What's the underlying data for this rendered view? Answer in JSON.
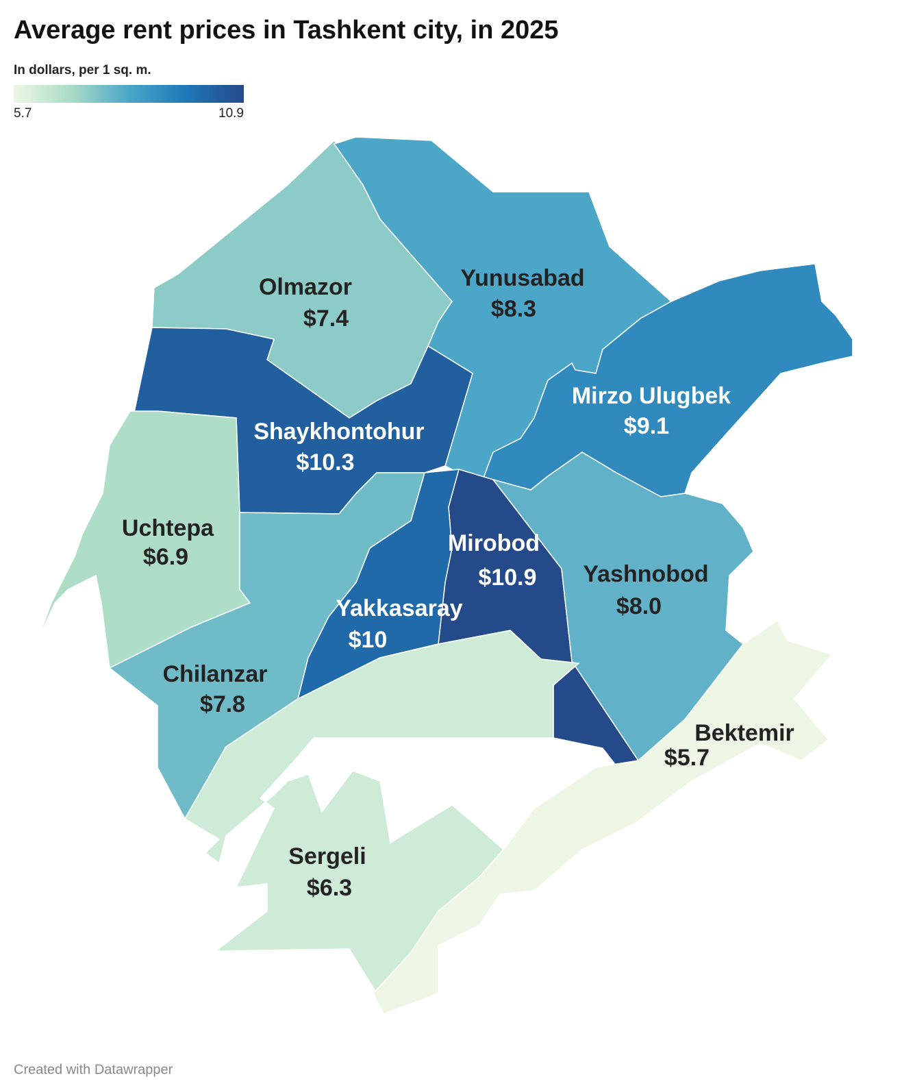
{
  "chart_data": {
    "type": "choropleth",
    "title": "Average rent prices in Tashkent city, in 2025",
    "subtitle": "In dollars, per 1 sq. m.",
    "regions": [
      "Olmazor",
      "Yunusabad",
      "Mirzo Ulugbek",
      "Shaykhontohur",
      "Uchtepa",
      "Mirobod",
      "Yashnobod",
      "Yakkasaray",
      "Chilanzar",
      "Sergeli",
      "Bektemir"
    ],
    "values": [
      7.4,
      8.3,
      9.1,
      10.3,
      6.9,
      10.9,
      8.0,
      10,
      7.8,
      6.3,
      5.7
    ],
    "value_labels": [
      "$7.4",
      "$8.3",
      "$9.1",
      "$10.3",
      "$6.9",
      "$10.9",
      "$8.0",
      "$10",
      "$7.8",
      "$6.3",
      "$5.7"
    ],
    "colors": [
      "#eef7e6",
      "#a9dcc6",
      "#4ba6c8",
      "#1f78b8",
      "#254a8a"
    ],
    "legend_range": [
      5.7,
      10.9
    ],
    "legend_ticks": [
      5.7,
      10.9
    ],
    "footer": "Created with Datawrapper"
  }
}
